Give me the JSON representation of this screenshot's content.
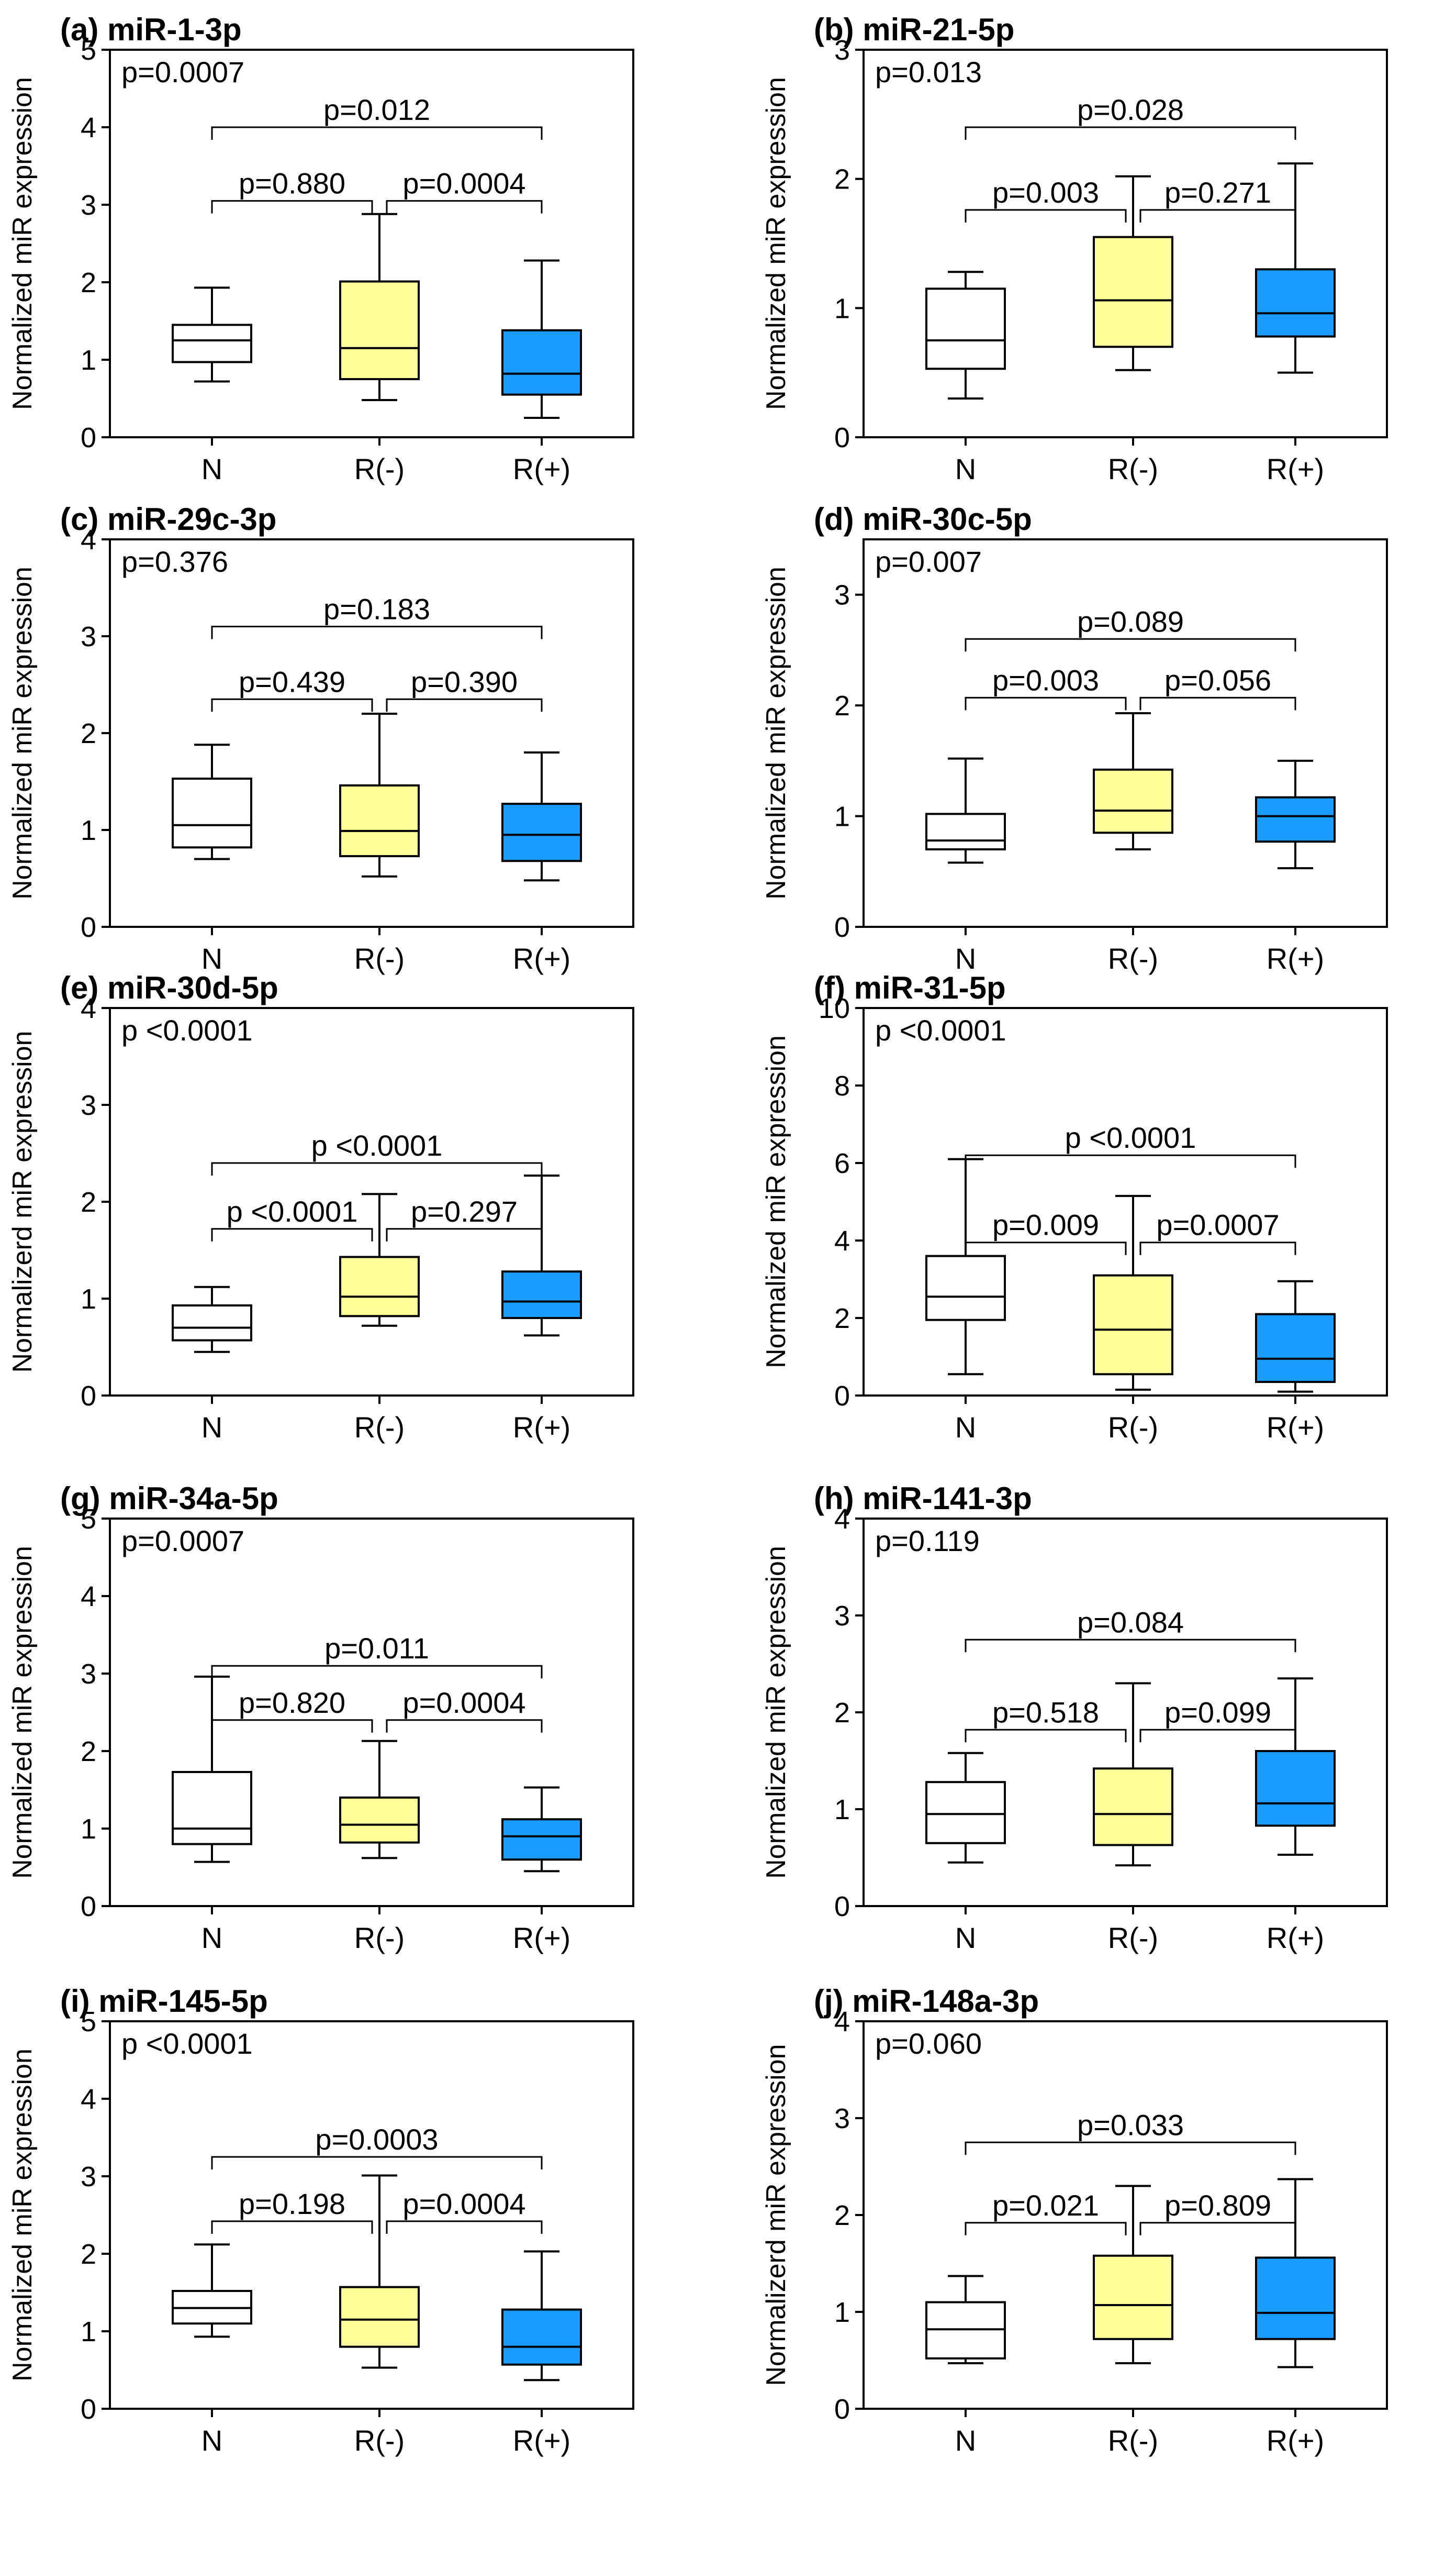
{
  "colors": {
    "N": "#ffffff",
    "R(-)": "#ffff99",
    "R(+)": "#1a9cff",
    "stroke": "#000000"
  },
  "chart_data": [
    {
      "type": "box",
      "title": "(a) miR-1-3p",
      "ylabel": "Normalized miR expression",
      "categories": [
        "N",
        "R(-)",
        "R(+)"
      ],
      "ylim": [
        0,
        5
      ],
      "yticks": [
        0,
        1,
        2,
        3,
        4,
        5
      ],
      "overall_p": "p=0.0007",
      "boxes": [
        {
          "category": "N",
          "min": 0.72,
          "q1": 0.97,
          "median": 1.25,
          "q3": 1.45,
          "max": 1.93
        },
        {
          "category": "R(-)",
          "min": 0.48,
          "q1": 0.75,
          "median": 1.15,
          "q3": 2.01,
          "max": 2.88
        },
        {
          "category": "R(+)",
          "min": 0.25,
          "q1": 0.55,
          "median": 0.82,
          "q3": 1.38,
          "max": 2.28
        }
      ],
      "comparisons": [
        {
          "pair": [
            "N",
            "R(-)"
          ],
          "label": "p=0.880",
          "y": 3.05
        },
        {
          "pair": [
            "R(-)",
            "R(+)"
          ],
          "label": "p=0.0004",
          "y": 3.05
        },
        {
          "pair": [
            "N",
            "R(+)"
          ],
          "label": "p=0.012",
          "y": 4.0
        }
      ]
    },
    {
      "type": "box",
      "title": "(b) miR-21-5p",
      "ylabel": "Normalized miR expression",
      "categories": [
        "N",
        "R(-)",
        "R(+)"
      ],
      "ylim": [
        0,
        3
      ],
      "yticks": [
        0,
        1,
        2,
        3
      ],
      "overall_p": "p=0.013",
      "boxes": [
        {
          "category": "N",
          "min": 0.3,
          "q1": 0.53,
          "median": 0.75,
          "q3": 1.15,
          "max": 1.28
        },
        {
          "category": "R(-)",
          "min": 0.52,
          "q1": 0.7,
          "median": 1.06,
          "q3": 1.55,
          "max": 2.02
        },
        {
          "category": "R(+)",
          "min": 0.5,
          "q1": 0.78,
          "median": 0.96,
          "q3": 1.3,
          "max": 2.12
        }
      ],
      "comparisons": [
        {
          "pair": [
            "N",
            "R(-)"
          ],
          "label": "p=0.003",
          "y": 1.76
        },
        {
          "pair": [
            "R(-)",
            "R(+)"
          ],
          "label": "p=0.271",
          "y": 1.76
        },
        {
          "pair": [
            "N",
            "R(+)"
          ],
          "label": "p=0.028",
          "y": 2.4
        }
      ]
    },
    {
      "type": "box",
      "title": "(c) miR-29c-3p",
      "ylabel": "Normalized miR expression",
      "categories": [
        "N",
        "R(-)",
        "R(+)"
      ],
      "ylim": [
        0,
        4
      ],
      "yticks": [
        0,
        1,
        2,
        3,
        4
      ],
      "overall_p": "p=0.376",
      "boxes": [
        {
          "category": "N",
          "min": 0.7,
          "q1": 0.82,
          "median": 1.05,
          "q3": 1.53,
          "max": 1.88
        },
        {
          "category": "R(-)",
          "min": 0.52,
          "q1": 0.73,
          "median": 0.99,
          "q3": 1.46,
          "max": 2.2
        },
        {
          "category": "R(+)",
          "min": 0.48,
          "q1": 0.68,
          "median": 0.95,
          "q3": 1.27,
          "max": 1.8
        }
      ],
      "comparisons": [
        {
          "pair": [
            "N",
            "R(-)"
          ],
          "label": "p=0.439",
          "y": 2.35
        },
        {
          "pair": [
            "R(-)",
            "R(+)"
          ],
          "label": "p=0.390",
          "y": 2.35
        },
        {
          "pair": [
            "N",
            "R(+)"
          ],
          "label": "p=0.183",
          "y": 3.1
        }
      ]
    },
    {
      "type": "box",
      "title": "(d) miR-30c-5p",
      "ylabel": "Normalized miR expression",
      "categories": [
        "N",
        "R(-)",
        "R(+)"
      ],
      "ylim": [
        0,
        3.5
      ],
      "yticks": [
        0,
        1,
        2,
        3
      ],
      "overall_p": "p=0.007",
      "boxes": [
        {
          "category": "N",
          "min": 0.58,
          "q1": 0.7,
          "median": 0.78,
          "q3": 1.02,
          "max": 1.52
        },
        {
          "category": "R(-)",
          "min": 0.7,
          "q1": 0.85,
          "median": 1.05,
          "q3": 1.42,
          "max": 1.93
        },
        {
          "category": "R(+)",
          "min": 0.53,
          "q1": 0.77,
          "median": 1.0,
          "q3": 1.17,
          "max": 1.5
        }
      ],
      "comparisons": [
        {
          "pair": [
            "N",
            "R(-)"
          ],
          "label": "p=0.003",
          "y": 2.07
        },
        {
          "pair": [
            "R(-)",
            "R(+)"
          ],
          "label": "p=0.056",
          "y": 2.07
        },
        {
          "pair": [
            "N",
            "R(+)"
          ],
          "label": "p=0.089",
          "y": 2.6
        }
      ]
    },
    {
      "type": "box",
      "title": "(e) miR-30d-5p",
      "ylabel": "Normalizerd miR expression",
      "categories": [
        "N",
        "R(-)",
        "R(+)"
      ],
      "ylim": [
        0,
        4
      ],
      "yticks": [
        0,
        1,
        2,
        3,
        4
      ],
      "overall_p": "p <0.0001",
      "boxes": [
        {
          "category": "N",
          "min": 0.45,
          "q1": 0.57,
          "median": 0.7,
          "q3": 0.93,
          "max": 1.12
        },
        {
          "category": "R(-)",
          "min": 0.72,
          "q1": 0.82,
          "median": 1.02,
          "q3": 1.43,
          "max": 2.08
        },
        {
          "category": "R(+)",
          "min": 0.62,
          "q1": 0.8,
          "median": 0.97,
          "q3": 1.28,
          "max": 2.27
        }
      ],
      "comparisons": [
        {
          "pair": [
            "N",
            "R(-)"
          ],
          "label": "p <0.0001",
          "y": 1.72
        },
        {
          "pair": [
            "R(-)",
            "R(+)"
          ],
          "label": "p=0.297",
          "y": 1.72
        },
        {
          "pair": [
            "N",
            "R(+)"
          ],
          "label": "p <0.0001",
          "y": 2.4
        }
      ]
    },
    {
      "type": "box",
      "title": "(f) miR-31-5p",
      "ylabel": "Normalized miR expression",
      "categories": [
        "N",
        "R(-)",
        "R(+)"
      ],
      "ylim": [
        0,
        10
      ],
      "yticks": [
        0,
        2,
        4,
        6,
        8,
        10
      ],
      "overall_p": "p <0.0001",
      "boxes": [
        {
          "category": "N",
          "min": 0.55,
          "q1": 1.95,
          "median": 2.55,
          "q3": 3.6,
          "max": 6.1
        },
        {
          "category": "R(-)",
          "min": 0.15,
          "q1": 0.55,
          "median": 1.7,
          "q3": 3.1,
          "max": 5.15
        },
        {
          "category": "R(+)",
          "min": 0.1,
          "q1": 0.35,
          "median": 0.95,
          "q3": 2.1,
          "max": 2.95
        }
      ],
      "comparisons": [
        {
          "pair": [
            "N",
            "R(-)"
          ],
          "label": "p=0.009",
          "y": 3.95
        },
        {
          "pair": [
            "R(-)",
            "R(+)"
          ],
          "label": "p=0.0007",
          "y": 3.95
        },
        {
          "pair": [
            "N",
            "R(+)"
          ],
          "label": "p <0.0001",
          "y": 6.2
        }
      ]
    },
    {
      "type": "box",
      "title": "(g) miR-34a-5p",
      "ylabel": "Normalized miR expression",
      "categories": [
        "N",
        "R(-)",
        "R(+)"
      ],
      "ylim": [
        0,
        5
      ],
      "yticks": [
        0,
        1,
        2,
        3,
        4,
        5
      ],
      "overall_p": "p=0.0007",
      "boxes": [
        {
          "category": "N",
          "min": 0.57,
          "q1": 0.8,
          "median": 1.0,
          "q3": 1.73,
          "max": 2.96
        },
        {
          "category": "R(-)",
          "min": 0.62,
          "q1": 0.82,
          "median": 1.05,
          "q3": 1.4,
          "max": 2.13
        },
        {
          "category": "R(+)",
          "min": 0.45,
          "q1": 0.6,
          "median": 0.9,
          "q3": 1.12,
          "max": 1.53
        }
      ],
      "comparisons": [
        {
          "pair": [
            "N",
            "R(-)"
          ],
          "label": "p=0.820",
          "y": 2.4
        },
        {
          "pair": [
            "R(-)",
            "R(+)"
          ],
          "label": "p=0.0004",
          "y": 2.4
        },
        {
          "pair": [
            "N",
            "R(+)"
          ],
          "label": "p=0.011",
          "y": 3.1
        }
      ]
    },
    {
      "type": "box",
      "title": "(h) miR-141-3p",
      "ylabel": "Normalized miR expression",
      "categories": [
        "N",
        "R(-)",
        "R(+)"
      ],
      "ylim": [
        0,
        4
      ],
      "yticks": [
        0,
        1,
        2,
        3,
        4
      ],
      "overall_p": "p=0.119",
      "boxes": [
        {
          "category": "N",
          "min": 0.45,
          "q1": 0.65,
          "median": 0.95,
          "q3": 1.28,
          "max": 1.58
        },
        {
          "category": "R(-)",
          "min": 0.42,
          "q1": 0.63,
          "median": 0.95,
          "q3": 1.42,
          "max": 2.3
        },
        {
          "category": "R(+)",
          "min": 0.53,
          "q1": 0.83,
          "median": 1.06,
          "q3": 1.6,
          "max": 2.35
        }
      ],
      "comparisons": [
        {
          "pair": [
            "N",
            "R(-)"
          ],
          "label": "p=0.518",
          "y": 1.82
        },
        {
          "pair": [
            "R(-)",
            "R(+)"
          ],
          "label": "p=0.099",
          "y": 1.82
        },
        {
          "pair": [
            "N",
            "R(+)"
          ],
          "label": "p=0.084",
          "y": 2.75
        }
      ]
    },
    {
      "type": "box",
      "title": "(i) miR-145-5p",
      "ylabel": "Normalized miR expression",
      "categories": [
        "N",
        "R(-)",
        "R(+)"
      ],
      "ylim": [
        0,
        5
      ],
      "yticks": [
        0,
        1,
        2,
        3,
        4,
        5
      ],
      "overall_p": "p <0.0001",
      "boxes": [
        {
          "category": "N",
          "min": 0.93,
          "q1": 1.1,
          "median": 1.3,
          "q3": 1.52,
          "max": 2.12
        },
        {
          "category": "R(-)",
          "min": 0.53,
          "q1": 0.8,
          "median": 1.15,
          "q3": 1.57,
          "max": 3.01
        },
        {
          "category": "R(+)",
          "min": 0.37,
          "q1": 0.57,
          "median": 0.8,
          "q3": 1.28,
          "max": 2.03
        }
      ],
      "comparisons": [
        {
          "pair": [
            "N",
            "R(-)"
          ],
          "label": "p=0.198",
          "y": 2.42
        },
        {
          "pair": [
            "R(-)",
            "R(+)"
          ],
          "label": "p=0.0004",
          "y": 2.42
        },
        {
          "pair": [
            "N",
            "R(+)"
          ],
          "label": "p=0.0003",
          "y": 3.25
        }
      ]
    },
    {
      "type": "box",
      "title": "(j) miR-148a-3p",
      "ylabel": "Normalizerd miR expression",
      "categories": [
        "N",
        "R(-)",
        "R(+)"
      ],
      "ylim": [
        0,
        4
      ],
      "yticks": [
        0,
        1,
        2,
        3,
        4
      ],
      "overall_p": "p=0.060",
      "boxes": [
        {
          "category": "N",
          "min": 0.47,
          "q1": 0.52,
          "median": 0.82,
          "q3": 1.1,
          "max": 1.37
        },
        {
          "category": "R(-)",
          "min": 0.47,
          "q1": 0.72,
          "median": 1.07,
          "q3": 1.58,
          "max": 2.3
        },
        {
          "category": "R(+)",
          "min": 0.43,
          "q1": 0.72,
          "median": 0.99,
          "q3": 1.56,
          "max": 2.37
        }
      ],
      "comparisons": [
        {
          "pair": [
            "N",
            "R(-)"
          ],
          "label": "p=0.021",
          "y": 1.92
        },
        {
          "pair": [
            "R(-)",
            "R(+)"
          ],
          "label": "p=0.809",
          "y": 1.92
        },
        {
          "pair": [
            "N",
            "R(+)"
          ],
          "label": "p=0.033",
          "y": 2.75
        }
      ]
    }
  ]
}
